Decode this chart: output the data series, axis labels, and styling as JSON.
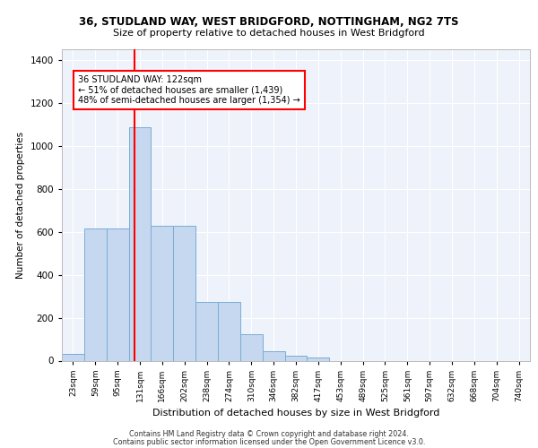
{
  "title_line1": "36, STUDLAND WAY, WEST BRIDGFORD, NOTTINGHAM, NG2 7TS",
  "title_line2": "Size of property relative to detached houses in West Bridgford",
  "xlabel": "Distribution of detached houses by size in West Bridgford",
  "ylabel": "Number of detached properties",
  "footnote1": "Contains HM Land Registry data © Crown copyright and database right 2024.",
  "footnote2": "Contains public sector information licensed under the Open Government Licence v3.0.",
  "bar_labels": [
    "23sqm",
    "59sqm",
    "95sqm",
    "131sqm",
    "166sqm",
    "202sqm",
    "238sqm",
    "274sqm",
    "310sqm",
    "346sqm",
    "382sqm",
    "417sqm",
    "453sqm",
    "489sqm",
    "525sqm",
    "561sqm",
    "597sqm",
    "632sqm",
    "668sqm",
    "704sqm",
    "740sqm"
  ],
  "bar_values": [
    30,
    615,
    615,
    1085,
    630,
    630,
    275,
    275,
    125,
    45,
    22,
    14,
    0,
    0,
    0,
    0,
    0,
    0,
    0,
    0,
    0
  ],
  "bar_color": "#c5d8f0",
  "bar_edge_color": "#7aadd4",
  "marker_color": "red",
  "ylim": [
    0,
    1450
  ],
  "yticks": [
    0,
    200,
    400,
    600,
    800,
    1000,
    1200,
    1400
  ],
  "annotation_title": "36 STUDLAND WAY: 122sqm",
  "annotation_line1": "← 51% of detached houses are smaller (1,439)",
  "annotation_line2": "48% of semi-detached houses are larger (1,354) →",
  "bg_color": "#eef2fa"
}
